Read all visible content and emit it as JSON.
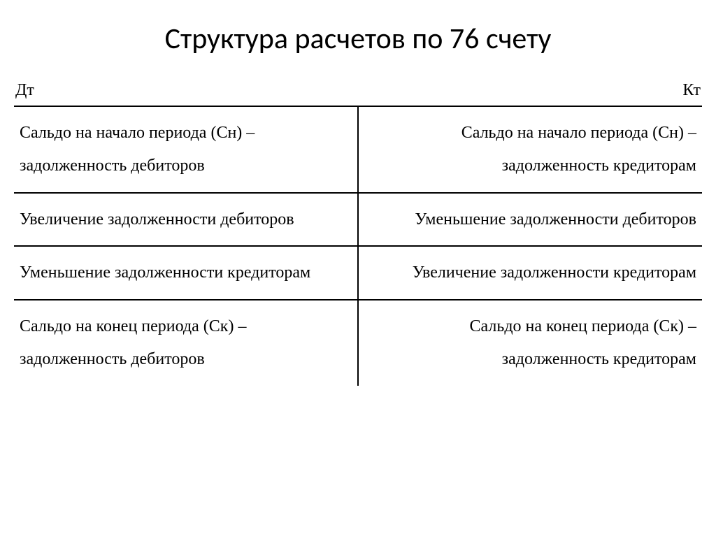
{
  "title": "Структура расчетов по 76 счету",
  "headers": {
    "debit": "Дт",
    "credit": "Кт"
  },
  "rows": [
    {
      "left": "Сальдо на начало периода (Сн) – задолженность дебиторов",
      "right": "Сальдо на начало периода (Сн) – задолженность кредиторам"
    },
    {
      "left": "Увеличение задолженности дебиторов",
      "right": "Уменьшение задолженности дебиторов"
    },
    {
      "left": "Уменьшение задолженности кредиторам",
      "right": "Увеличение задолженности кредиторам"
    },
    {
      "left": "Сальдо на конец периода (Ск) – задолженность дебиторов",
      "right": "Сальдо на конец периода (Ск) – задолженность кредиторам"
    }
  ],
  "styling": {
    "background_color": "#ffffff",
    "text_color": "#000000",
    "border_color": "#000000",
    "border_width": 2,
    "title_fontsize": 42,
    "body_fontsize": 24,
    "title_font": "Calibri",
    "body_font": "Times New Roman",
    "line_height": 1.95
  }
}
